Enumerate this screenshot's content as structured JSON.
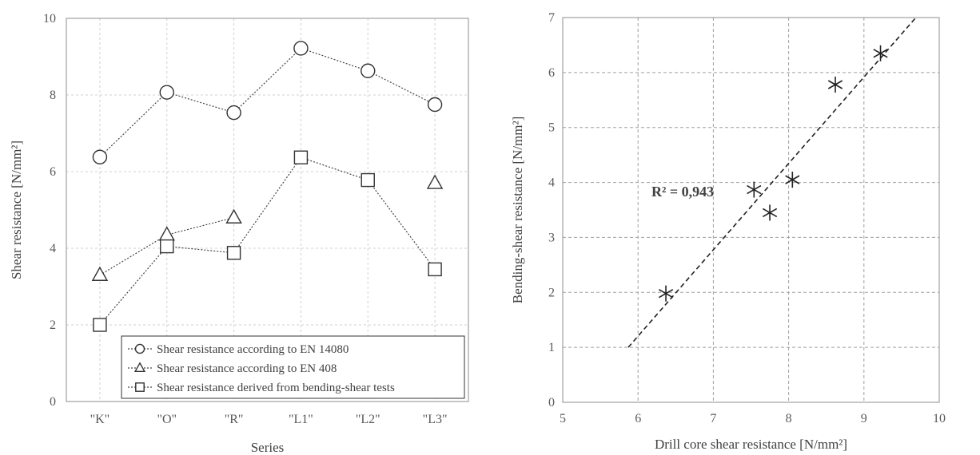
{
  "chart_data": [
    {
      "type": "line",
      "xlabel": "Series",
      "ylabel": "Shear resistance [N/mm²]",
      "categories": [
        "\"K\"",
        "\"O\"",
        "\"R\"",
        "\"L1\"",
        "\"L2\"",
        "\"L3\""
      ],
      "ylim": [
        0,
        10
      ],
      "yticks": [
        "0",
        "2",
        "4",
        "6",
        "8",
        "10"
      ],
      "grid": true,
      "legend_position": "bottom-right",
      "series": [
        {
          "name": "Shear resistance according to EN 14080",
          "marker": "circle",
          "values": [
            6.38,
            8.07,
            7.54,
            9.22,
            8.63,
            7.75
          ]
        },
        {
          "name": "Shear resistance according to EN 408",
          "marker": "triangle",
          "values": [
            3.3,
            4.35,
            4.8,
            null,
            null,
            5.7
          ]
        },
        {
          "name": "Shear resistance derived from bending-shear tests",
          "marker": "square",
          "values": [
            2.0,
            4.05,
            3.88,
            6.37,
            5.78,
            3.45
          ]
        }
      ]
    },
    {
      "type": "scatter",
      "xlabel": "Drill core shear resistance [N/mm²]",
      "ylabel": "Bending-shear resistance [N/mm²]",
      "xlim": [
        5,
        10
      ],
      "ylim": [
        0,
        7
      ],
      "xticks": [
        "5",
        "6",
        "7",
        "8",
        "9",
        "10"
      ],
      "yticks": [
        "0",
        "1",
        "2",
        "3",
        "4",
        "5",
        "6",
        "7"
      ],
      "grid": true,
      "marker": "asterisk",
      "points": [
        {
          "x": 6.37,
          "y": 1.98
        },
        {
          "x": 7.54,
          "y": 3.87
        },
        {
          "x": 7.75,
          "y": 3.45
        },
        {
          "x": 8.05,
          "y": 4.05
        },
        {
          "x": 8.62,
          "y": 5.78
        },
        {
          "x": 9.22,
          "y": 6.35
        }
      ],
      "trendline": {
        "x_start": 5.87,
        "y_start": 1.0,
        "x_end": 9.69,
        "y_end": 7.0
      },
      "annotation": "R² = 0,943"
    }
  ]
}
